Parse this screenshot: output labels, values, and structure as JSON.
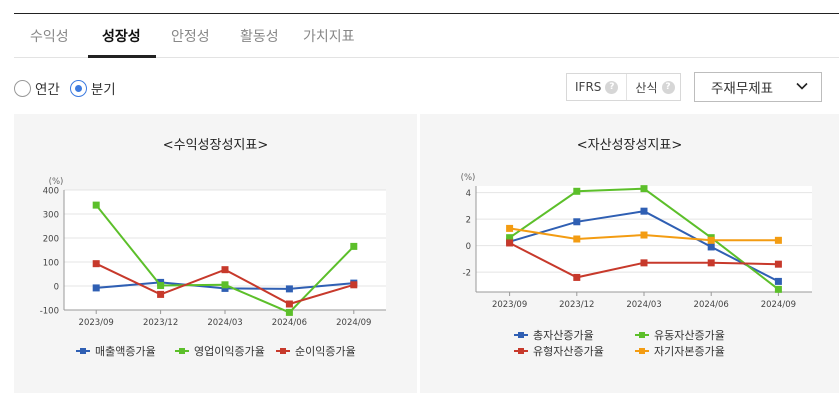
{
  "tabs": [
    {
      "label": "수익성",
      "active": false
    },
    {
      "label": "성장성",
      "active": true
    },
    {
      "label": "안정성",
      "active": false
    },
    {
      "label": "활동성",
      "active": false
    },
    {
      "label": "가치지표",
      "active": false
    }
  ],
  "period_options": [
    {
      "label": "연간",
      "checked": false
    },
    {
      "label": "분기",
      "checked": true
    }
  ],
  "ifrs": {
    "label": "IFRS",
    "formula_label": "산식",
    "help_glyph": "?"
  },
  "statement_select": {
    "value": "주재무제표"
  },
  "colors": {
    "blue": "#2f5fb3",
    "green": "#5cbf2a",
    "red": "#c7392b",
    "orange": "#f39c12",
    "grid": "#e4e4e4"
  },
  "chart_data": [
    {
      "type": "line",
      "title": "<수익성장성지표>",
      "unit": "(%)",
      "categories": [
        "2023/09",
        "2023/12",
        "2024/03",
        "2024/06",
        "2024/09"
      ],
      "ylim": [
        -100,
        400
      ],
      "yticks": [
        400,
        300,
        200,
        100,
        0,
        -100
      ],
      "grid": true,
      "legend_position": "bottom",
      "series": [
        {
          "name": "매출액증가율",
          "color": "#2f5fb3",
          "values": [
            -8,
            15,
            -10,
            -12,
            12
          ]
        },
        {
          "name": "영업이익증가율",
          "color": "#5cbf2a",
          "values": [
            337,
            2,
            5,
            -110,
            165
          ]
        },
        {
          "name": "순이익증가율",
          "color": "#c7392b",
          "values": [
            93,
            -35,
            68,
            -75,
            5
          ]
        }
      ]
    },
    {
      "type": "line",
      "title": "<자산성장성지표>",
      "unit": "(%)",
      "categories": [
        "2023/09",
        "2023/12",
        "2024/03",
        "2024/06",
        "2024/09"
      ],
      "ylim": [
        -3.5,
        4.5
      ],
      "yticks": [
        4,
        2,
        0,
        -2
      ],
      "grid": true,
      "legend_position": "bottom",
      "series": [
        {
          "name": "총자산증가율",
          "color": "#2f5fb3",
          "values": [
            0.3,
            1.8,
            2.6,
            -0.1,
            -2.7
          ]
        },
        {
          "name": "유동자산증가율",
          "color": "#5cbf2a",
          "values": [
            0.6,
            4.1,
            4.3,
            0.6,
            -3.3
          ]
        },
        {
          "name": "유형자산증가율",
          "color": "#c7392b",
          "values": [
            0.2,
            -2.4,
            -1.3,
            -1.3,
            -1.4
          ]
        },
        {
          "name": "자기자본증가율",
          "color": "#f39c12",
          "values": [
            1.3,
            0.5,
            0.8,
            0.4,
            0.4
          ]
        }
      ]
    }
  ]
}
